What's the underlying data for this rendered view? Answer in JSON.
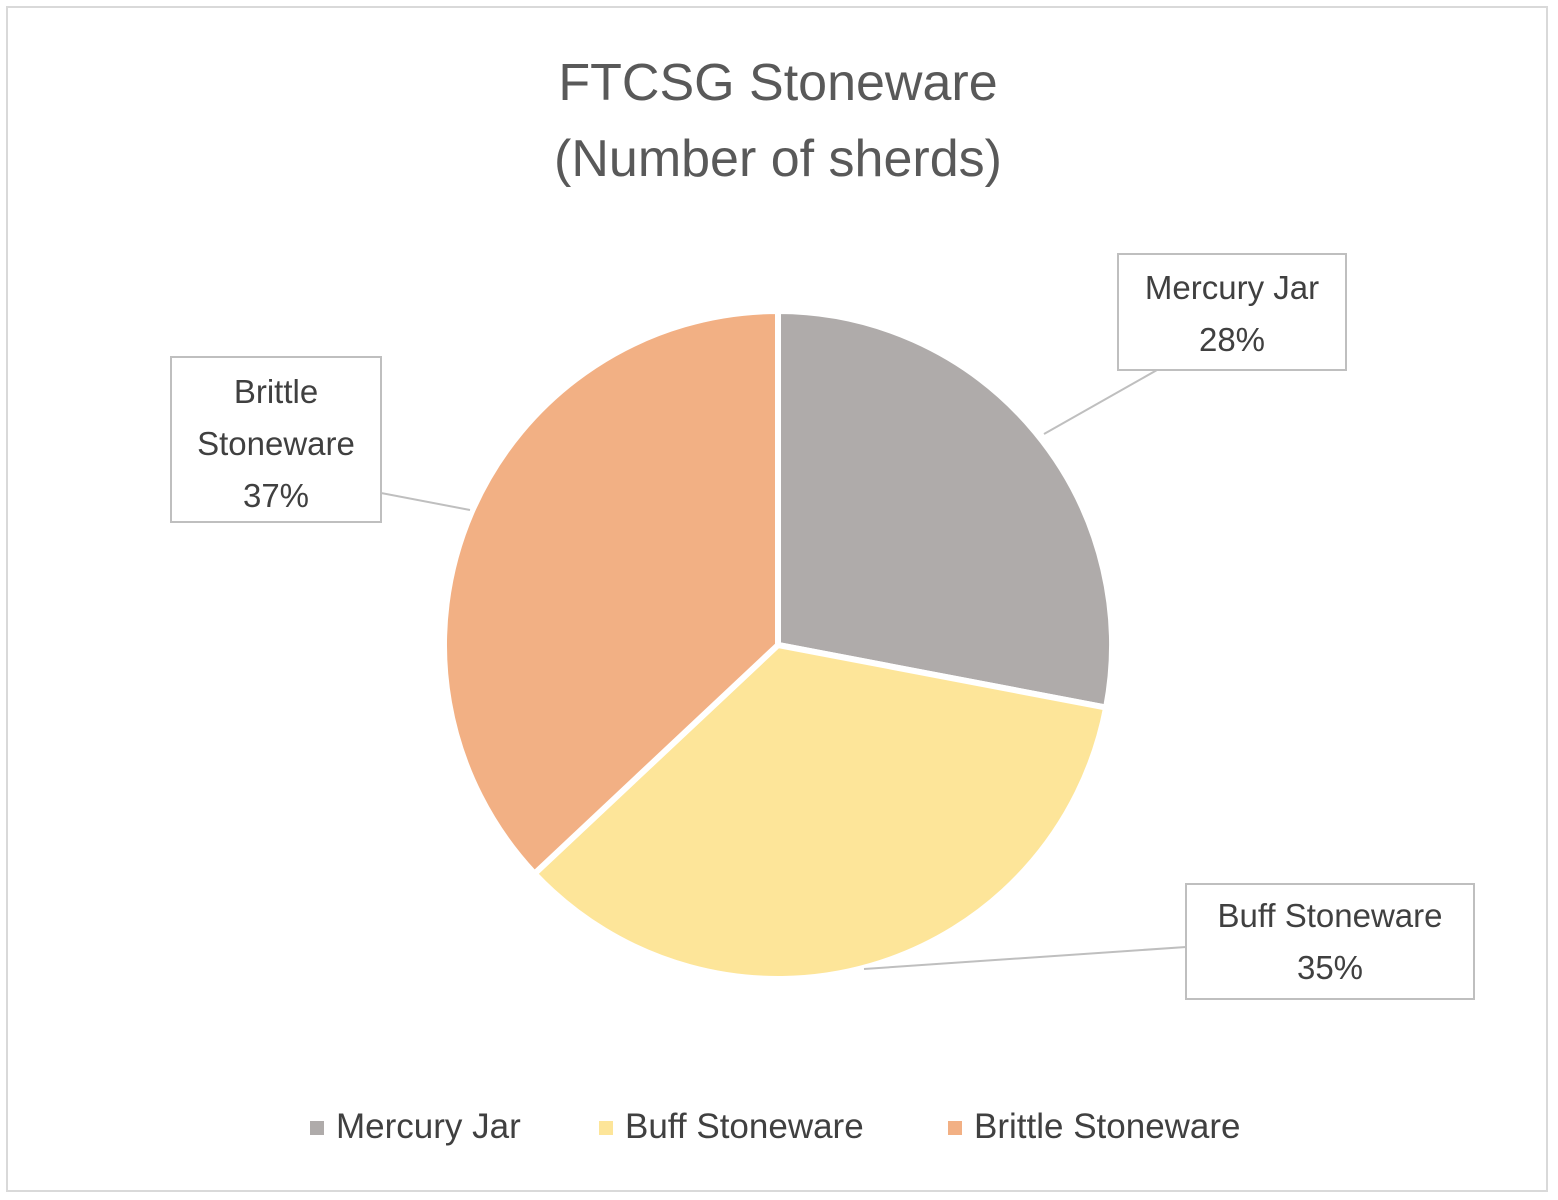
{
  "chart_data": {
    "type": "pie",
    "title_lines": [
      "FTCSG Stoneware",
      "(Number of sherds)"
    ],
    "slices": [
      {
        "name": "Mercury Jar",
        "percent": 28,
        "value_label": "28%",
        "label_lines": [
          "Mercury Jar",
          "28%"
        ],
        "color": "#afabaa"
      },
      {
        "name": "Buff Stoneware",
        "percent": 35,
        "value_label": "35%",
        "label_lines": [
          "Buff Stoneware",
          "35%"
        ],
        "color": "#fde599"
      },
      {
        "name": "Brittle Stoneware",
        "percent": 37,
        "value_label": "37%",
        "label_lines": [
          "Brittle",
          "Stoneware",
          "37%"
        ],
        "color": "#f2b084"
      }
    ],
    "legend": {
      "placement": "bottom",
      "items": [
        "Mercury Jar",
        "Buff Stoneware",
        "Brittle Stoneware"
      ]
    },
    "start_angle": "12 o'clock",
    "direction": "clockwise"
  }
}
